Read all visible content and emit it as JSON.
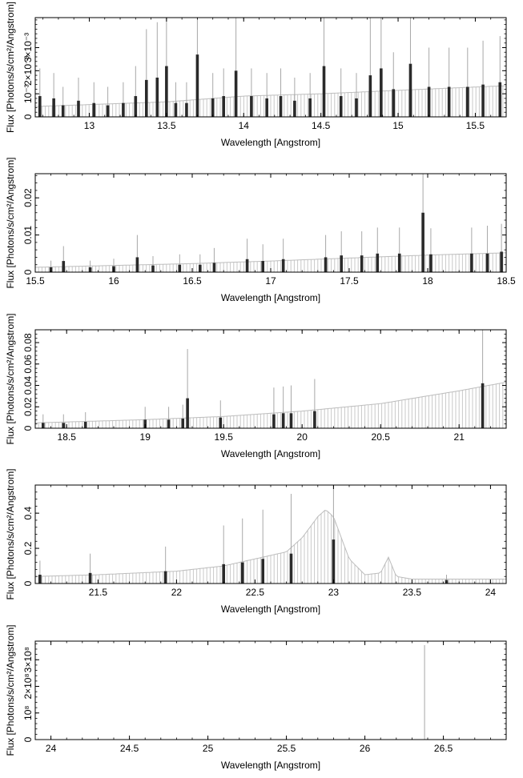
{
  "chart_data": [
    {
      "type": "bar",
      "xlabel": "Wavelength [Angstrom]",
      "ylabel": "Flux [Photons/s/cm²/Angstrom]",
      "xlim": [
        12.65,
        15.7
      ],
      "ylim": [
        0,
        0.0043
      ],
      "xticks": [
        13,
        13.5,
        14,
        14.5,
        15,
        15.5
      ],
      "xtick_labels": [
        "13",
        "13.5",
        "14",
        "14.5",
        "15",
        "15.5"
      ],
      "yticks": [
        0,
        0.001,
        0.002,
        0.003
      ],
      "ytick_labels": [
        "0",
        "10⁻³",
        "2×10⁻³",
        "3×10⁻³"
      ],
      "continuum": {
        "x": [
          12.65,
          13.5,
          14.0,
          14.5,
          15.0,
          15.7
        ],
        "y": [
          0.00045,
          0.00065,
          0.0009,
          0.001,
          0.00115,
          0.00135
        ]
      },
      "bars": [
        {
          "x": 12.68,
          "y": 0.0009,
          "err": 0.0012
        },
        {
          "x": 12.77,
          "y": 0.0008,
          "err": 0.0011
        },
        {
          "x": 12.83,
          "y": 0.0005,
          "err": 0.0008
        },
        {
          "x": 12.93,
          "y": 0.0007,
          "err": 0.001
        },
        {
          "x": 13.03,
          "y": 0.0006,
          "err": 0.0009
        },
        {
          "x": 13.12,
          "y": 0.0005,
          "err": 0.0008
        },
        {
          "x": 13.22,
          "y": 0.0006,
          "err": 0.0009
        },
        {
          "x": 13.3,
          "y": 0.0009,
          "err": 0.0013
        },
        {
          "x": 13.37,
          "y": 0.0016,
          "err": 0.0022
        },
        {
          "x": 13.44,
          "y": 0.0017,
          "err": 0.0024
        },
        {
          "x": 13.5,
          "y": 0.0022,
          "err": 0.003
        },
        {
          "x": 13.56,
          "y": 0.0006,
          "err": 0.0009
        },
        {
          "x": 13.63,
          "y": 0.0006,
          "err": 0.0009
        },
        {
          "x": 13.7,
          "y": 0.0027,
          "err": 0.0036
        },
        {
          "x": 13.8,
          "y": 0.0008,
          "err": 0.0011
        },
        {
          "x": 13.87,
          "y": 0.0009,
          "err": 0.0012
        },
        {
          "x": 13.95,
          "y": 0.002,
          "err": 0.0034
        },
        {
          "x": 14.05,
          "y": 0.0009,
          "err": 0.0012
        },
        {
          "x": 14.15,
          "y": 0.0008,
          "err": 0.0011
        },
        {
          "x": 14.24,
          "y": 0.0009,
          "err": 0.0012
        },
        {
          "x": 14.33,
          "y": 0.0007,
          "err": 0.001
        },
        {
          "x": 14.43,
          "y": 0.0008,
          "err": 0.0011
        },
        {
          "x": 14.52,
          "y": 0.0022,
          "err": 0.0034
        },
        {
          "x": 14.63,
          "y": 0.0009,
          "err": 0.0012
        },
        {
          "x": 14.73,
          "y": 0.0008,
          "err": 0.0011
        },
        {
          "x": 14.82,
          "y": 0.0018,
          "err": 0.0026
        },
        {
          "x": 14.89,
          "y": 0.0021,
          "err": 0.0033
        },
        {
          "x": 14.97,
          "y": 0.0012,
          "err": 0.0016
        },
        {
          "x": 15.08,
          "y": 0.0023,
          "err": 0.0036
        },
        {
          "x": 15.2,
          "y": 0.0013,
          "err": 0.0017
        },
        {
          "x": 15.33,
          "y": 0.0013,
          "err": 0.0017
        },
        {
          "x": 15.45,
          "y": 0.0013,
          "err": 0.0017
        },
        {
          "x": 15.55,
          "y": 0.0014,
          "err": 0.0019
        },
        {
          "x": 15.66,
          "y": 0.0015,
          "err": 0.002
        }
      ]
    },
    {
      "type": "bar",
      "xlabel": "Wavelength [Angstrom]",
      "ylabel": "Flux [Photons/s/cm²/Angstrom]",
      "xlim": [
        15.5,
        18.5
      ],
      "ylim": [
        0,
        0.0265
      ],
      "xticks": [
        15.5,
        16,
        16.5,
        17,
        17.5,
        18,
        18.5
      ],
      "xtick_labels": [
        "15.5",
        "16",
        "16.5",
        "17",
        "17.5",
        "18",
        "18.5"
      ],
      "yticks": [
        0,
        0.01,
        0.02
      ],
      "ytick_labels": [
        "0",
        "0.01",
        "0.02"
      ],
      "continuum": {
        "x": [
          15.5,
          16.0,
          16.5,
          17.0,
          17.5,
          18.0,
          18.5
        ],
        "y": [
          0.0013,
          0.0018,
          0.0023,
          0.003,
          0.0038,
          0.0046,
          0.0052
        ]
      },
      "bars": [
        {
          "x": 15.6,
          "y": 0.0013,
          "err": 0.0018
        },
        {
          "x": 15.68,
          "y": 0.003,
          "err": 0.004
        },
        {
          "x": 15.85,
          "y": 0.0013,
          "err": 0.0018
        },
        {
          "x": 16.0,
          "y": 0.0016,
          "err": 0.002
        },
        {
          "x": 16.15,
          "y": 0.004,
          "err": 0.006
        },
        {
          "x": 16.25,
          "y": 0.0018,
          "err": 0.0025
        },
        {
          "x": 16.42,
          "y": 0.002,
          "err": 0.0028
        },
        {
          "x": 16.55,
          "y": 0.002,
          "err": 0.0028
        },
        {
          "x": 16.64,
          "y": 0.0025,
          "err": 0.004
        },
        {
          "x": 16.85,
          "y": 0.0035,
          "err": 0.0055
        },
        {
          "x": 16.95,
          "y": 0.003,
          "err": 0.0045
        },
        {
          "x": 17.08,
          "y": 0.0035,
          "err": 0.0055
        },
        {
          "x": 17.35,
          "y": 0.004,
          "err": 0.006
        },
        {
          "x": 17.45,
          "y": 0.0045,
          "err": 0.0065
        },
        {
          "x": 17.58,
          "y": 0.0045,
          "err": 0.0065
        },
        {
          "x": 17.68,
          "y": 0.005,
          "err": 0.007
        },
        {
          "x": 17.82,
          "y": 0.005,
          "err": 0.007
        },
        {
          "x": 17.97,
          "y": 0.016,
          "err": 0.025
        },
        {
          "x": 18.02,
          "y": 0.0048,
          "err": 0.007
        },
        {
          "x": 18.28,
          "y": 0.005,
          "err": 0.007
        },
        {
          "x": 18.38,
          "y": 0.005,
          "err": 0.0075
        },
        {
          "x": 18.47,
          "y": 0.0055,
          "err": 0.0075
        }
      ]
    },
    {
      "type": "bar",
      "xlabel": "Wavelength [Angstrom]",
      "ylabel": "Flux [Photons/s/cm²/Angstrom]",
      "xlim": [
        18.3,
        21.3
      ],
      "ylim": [
        0,
        0.092
      ],
      "xticks": [
        18.5,
        19,
        19.5,
        20,
        20.5,
        21
      ],
      "xtick_labels": [
        "18.5",
        "19",
        "19.5",
        "20",
        "20.5",
        "21"
      ],
      "yticks": [
        0,
        0.02,
        0.04,
        0.06,
        0.08
      ],
      "ytick_labels": [
        "0",
        "0.02",
        "0.04",
        "0.06",
        "0.08"
      ],
      "continuum": {
        "x": [
          18.3,
          19.0,
          19.5,
          20.0,
          20.5,
          21.0,
          21.3
        ],
        "y": [
          0.005,
          0.008,
          0.011,
          0.016,
          0.023,
          0.035,
          0.043
        ]
      },
      "bars": [
        {
          "x": 18.35,
          "y": 0.005,
          "err": 0.008
        },
        {
          "x": 18.48,
          "y": 0.005,
          "err": 0.008
        },
        {
          "x": 18.62,
          "y": 0.006,
          "err": 0.009
        },
        {
          "x": 19.0,
          "y": 0.008,
          "err": 0.012
        },
        {
          "x": 19.15,
          "y": 0.008,
          "err": 0.012
        },
        {
          "x": 19.24,
          "y": 0.009,
          "err": 0.013
        },
        {
          "x": 19.27,
          "y": 0.028,
          "err": 0.046
        },
        {
          "x": 19.48,
          "y": 0.01,
          "err": 0.016
        },
        {
          "x": 19.82,
          "y": 0.013,
          "err": 0.025
        },
        {
          "x": 19.88,
          "y": 0.014,
          "err": 0.025
        },
        {
          "x": 19.93,
          "y": 0.014,
          "err": 0.026
        },
        {
          "x": 20.08,
          "y": 0.016,
          "err": 0.03
        },
        {
          "x": 21.15,
          "y": 0.042,
          "err": 0.085
        }
      ]
    },
    {
      "type": "bar",
      "xlabel": "Wavelength [Angstrom]",
      "ylabel": "Flux [Photons/s/cm²/Angstrom]",
      "xlim": [
        21.1,
        24.1
      ],
      "ylim": [
        0,
        0.56
      ],
      "xticks": [
        21.5,
        22,
        22.5,
        23,
        23.5,
        24
      ],
      "xtick_labels": [
        "21.5",
        "22",
        "22.5",
        "23",
        "23.5",
        "24"
      ],
      "yticks": [
        0,
        0.2,
        0.4
      ],
      "ytick_labels": [
        "0",
        "0.2",
        "0.4"
      ],
      "continuum": {
        "x": [
          21.1,
          21.5,
          22.0,
          22.3,
          22.5,
          22.7,
          22.8,
          22.9,
          22.95,
          23.0,
          23.05,
          23.1,
          23.2,
          23.3,
          23.35,
          23.4,
          23.5,
          24.1
        ],
        "y": [
          0.04,
          0.05,
          0.07,
          0.1,
          0.14,
          0.18,
          0.26,
          0.38,
          0.42,
          0.38,
          0.26,
          0.14,
          0.05,
          0.06,
          0.15,
          0.04,
          0.025,
          0.025
        ]
      },
      "bars": [
        {
          "x": 21.13,
          "y": 0.05,
          "err": 0.08
        },
        {
          "x": 21.45,
          "y": 0.06,
          "err": 0.11
        },
        {
          "x": 21.93,
          "y": 0.07,
          "err": 0.14
        },
        {
          "x": 22.3,
          "y": 0.11,
          "err": 0.22
        },
        {
          "x": 22.42,
          "y": 0.12,
          "err": 0.25
        },
        {
          "x": 22.55,
          "y": 0.14,
          "err": 0.28
        },
        {
          "x": 22.73,
          "y": 0.17,
          "err": 0.34
        },
        {
          "x": 23.0,
          "y": 0.25,
          "err": 0.5
        },
        {
          "x": 23.72,
          "y": 0.02,
          "err": 0.03
        }
      ]
    },
    {
      "type": "bar",
      "xlabel": "Wavelength [Angstrom]",
      "ylabel": "Flux [Photons/s/cm²/Angstrom]",
      "xlim": [
        23.9,
        26.9
      ],
      "ylim": [
        0,
        370000000.0
      ],
      "xticks": [
        24,
        24.5,
        25,
        25.5,
        26,
        26.5
      ],
      "xtick_labels": [
        "24",
        "24.5",
        "25",
        "25.5",
        "26",
        "26.5"
      ],
      "yticks": [
        0,
        100000000.0,
        200000000.0,
        300000000.0
      ],
      "ytick_labels": [
        "0",
        "10⁸",
        "2×10⁸",
        "3×10⁸"
      ],
      "continuum": {
        "x": [
          23.9,
          26.9
        ],
        "y": [
          0,
          0
        ]
      },
      "bars": [
        {
          "x": 26.38,
          "y": 0,
          "err": 355000000.0
        }
      ]
    }
  ]
}
